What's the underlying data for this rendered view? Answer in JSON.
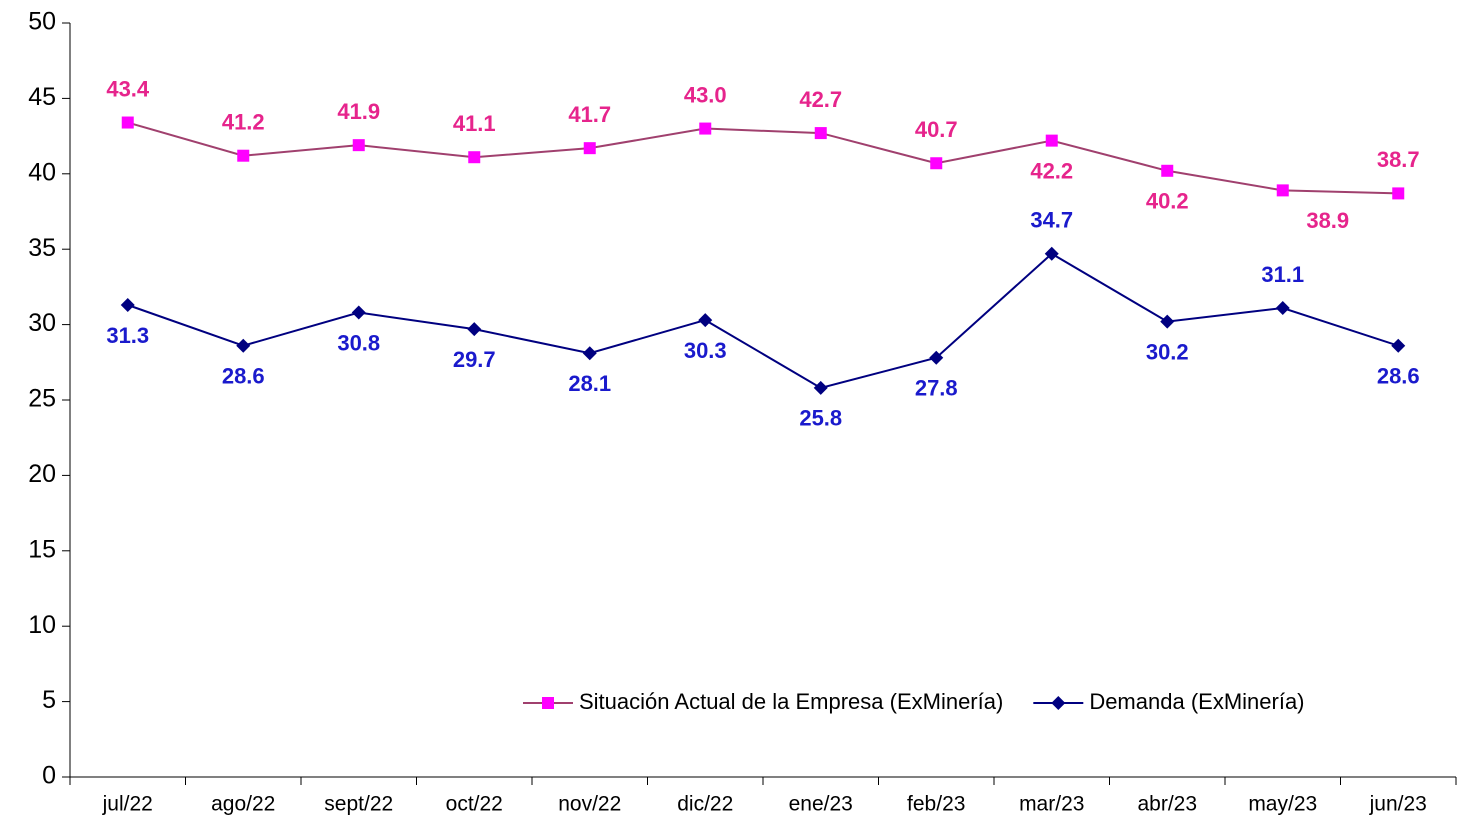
{
  "chart_data": {
    "type": "line",
    "categories": [
      "jul/22",
      "ago/22",
      "sept/22",
      "oct/22",
      "nov/22",
      "dic/22",
      "ene/23",
      "feb/23",
      "mar/23",
      "abr/23",
      "may/23",
      "jun/23"
    ],
    "series": [
      {
        "name": "Situación Actual de la Empresa (ExMinería)",
        "color": "#a0406e",
        "marker": "square",
        "marker_color": "#ff00ff",
        "label_color": "#e6248c",
        "values": [
          43.4,
          41.2,
          41.9,
          41.1,
          41.7,
          43.0,
          42.7,
          40.7,
          42.2,
          40.2,
          38.9,
          38.7
        ],
        "value_labels": [
          "43.4",
          "41.2",
          "41.9",
          "41.1",
          "41.7",
          "43.0",
          "42.7",
          "40.7",
          "42.2",
          "40.2",
          "38.9",
          "38.7"
        ]
      },
      {
        "name": "Demanda (ExMinería)",
        "color": "#000080",
        "marker": "diamond",
        "marker_color": "#000080",
        "label_color": "#1a1acc",
        "values": [
          31.3,
          28.6,
          30.8,
          29.7,
          28.1,
          30.3,
          25.8,
          27.8,
          34.7,
          30.2,
          31.1,
          28.6
        ],
        "value_labels": [
          "31.3",
          "28.6",
          "30.8",
          "29.7",
          "28.1",
          "30.3",
          "25.8",
          "27.8",
          "34.7",
          "30.2",
          "31.1",
          "28.6"
        ]
      }
    ],
    "ylim": [
      0,
      50
    ],
    "yticks": [
      0,
      5,
      10,
      15,
      20,
      25,
      30,
      35,
      40,
      45,
      50
    ],
    "grid": false,
    "legend": "lower right"
  }
}
